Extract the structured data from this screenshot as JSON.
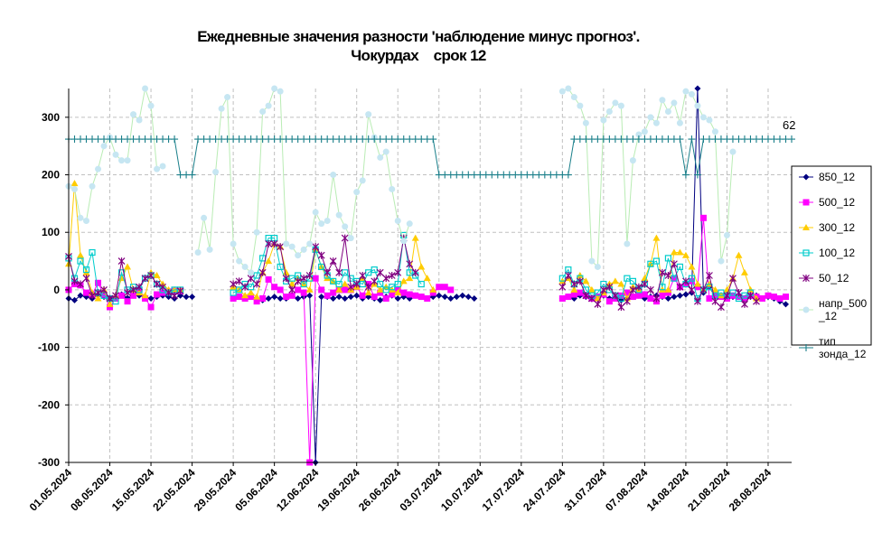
{
  "chart_data": {
    "type": "line",
    "title_line1": "Ежедневные значения разности 'наблюдение минус прогноз'.",
    "title_line2": "Чокурдах    срок 12",
    "ylim": [
      -300,
      350
    ],
    "yticks": [
      "300",
      "200",
      "100",
      "0",
      "-100",
      "-200",
      "-300"
    ],
    "ytick_values": [
      300,
      200,
      100,
      0,
      -100,
      -200,
      -300
    ],
    "x_start_day": "01.05.2024",
    "x_end_day": "01.09.2024",
    "xtick_labels": [
      "01.05.2024",
      "08.05.2024",
      "15.05.2024",
      "22.05.2024",
      "29.05.2024",
      "05.06.2024",
      "12.06.2024",
      "19.06.2024",
      "26.06.2024",
      "03.07.2024",
      "10.07.2024",
      "17.07.2024",
      "24.07.2024",
      "31.07.2024",
      "07.08.2024",
      "14.08.2024",
      "21.08.2024",
      "28.08.2024"
    ],
    "grid": true,
    "legend_position": "right",
    "annotation": "62",
    "series": [
      {
        "name": "850_12",
        "color": "#000080",
        "marker": "diamond",
        "legend_lines": [
          "850_12"
        ],
        "segments": [
          {
            "start": "01.05.2024",
            "values": [
              -15,
              -18,
              -10,
              -12,
              -15,
              -10,
              -12,
              -15,
              -12,
              -8,
              -14,
              -10,
              -10,
              -12,
              -15,
              -12,
              -10,
              -12,
              -15,
              -10,
              -12,
              -12
            ]
          },
          {
            "start": "29.05.2024",
            "values": [
              -15,
              -12,
              -15,
              -12,
              -15,
              -18,
              -15,
              -12,
              -15,
              -15,
              -10,
              -15,
              -12,
              -10,
              -300,
              -12,
              -12,
              -15,
              -12,
              -15,
              -12,
              -10,
              -15,
              -12,
              -15,
              -18,
              -12,
              -10,
              -15,
              -12,
              -15,
              -10,
              -12,
              -15,
              -12,
              -10,
              -12,
              -15,
              -12,
              -10,
              -12,
              -15
            ]
          },
          {
            "start": "24.07.2024",
            "values": [
              -15,
              -12,
              -15,
              -10,
              -12,
              -15,
              -12,
              -10,
              -15,
              -12,
              -18,
              -15,
              -12,
              -10,
              -15,
              -12,
              -10,
              -12,
              -15,
              -12,
              -10,
              -8,
              -5,
              350,
              -5,
              5,
              -12,
              -10,
              -15,
              -12,
              -10,
              -15,
              -12,
              -10,
              -15,
              -12,
              -15,
              -20,
              -25
            ]
          }
        ]
      },
      {
        "name": "500_12",
        "color": "#ff00ff",
        "marker": "square",
        "legend_lines": [
          "500_12"
        ],
        "segments": [
          {
            "start": "01.05.2024",
            "values": [
              0,
              10,
              8,
              -5,
              -8,
              12,
              -8,
              -30,
              -15,
              -10,
              -20,
              -10,
              0,
              -15,
              -30,
              -8,
              -5,
              -3,
              -2,
              -2
            ]
          },
          {
            "start": "29.05.2024",
            "values": [
              -15,
              -12,
              -15,
              -12,
              -20,
              -15,
              18,
              5,
              0,
              -12,
              -10,
              0,
              -5,
              -300,
              20,
              0,
              -10,
              -5,
              0,
              0,
              0,
              5,
              -10,
              10,
              -12,
              -5,
              -15,
              -8,
              0,
              -5,
              -8,
              -10,
              -12,
              -15,
              -5,
              5,
              5,
              0
            ]
          },
          {
            "start": "24.07.2024",
            "values": [
              -15,
              -12,
              -8,
              -5,
              -10,
              -15,
              -12,
              -8,
              -20,
              -15,
              -10,
              -5,
              -12,
              -10,
              -8,
              -15,
              -20,
              -10,
              -5,
              20,
              5,
              10,
              15,
              5,
              125,
              -15,
              -10,
              -12,
              -15,
              -10,
              -12,
              -15,
              -10,
              -12,
              -15,
              -10,
              -12,
              -15,
              -12
            ]
          }
        ]
      },
      {
        "name": "300_12",
        "color": "#ffcc00",
        "marker": "triangle",
        "legend_lines": [
          "300_12"
        ],
        "segments": [
          {
            "start": "01.05.2024",
            "values": [
              45,
              185,
              60,
              30,
              -5,
              -15,
              0,
              -25,
              -10,
              20,
              40,
              0,
              -5,
              -10,
              30,
              25,
              10,
              0,
              0,
              0
            ]
          },
          {
            "start": "29.05.2024",
            "values": [
              5,
              0,
              -10,
              -5,
              -12,
              30,
              50,
              80,
              75,
              30,
              10,
              20,
              10,
              0,
              70,
              40,
              20,
              15,
              0,
              10,
              0,
              5,
              20,
              -5,
              10,
              0,
              5,
              0,
              -5,
              15,
              20,
              90,
              40,
              20,
              0
            ]
          },
          {
            "start": "24.07.2024",
            "values": [
              15,
              20,
              0,
              25,
              15,
              0,
              -15,
              -5,
              10,
              15,
              10,
              -15,
              5,
              0,
              20,
              45,
              90,
              0,
              0,
              65,
              65,
              60,
              40,
              10,
              0,
              10,
              0,
              -10,
              0,
              20,
              60,
              30,
              0,
              -15
            ]
          }
        ]
      },
      {
        "name": "100_12",
        "color": "#00cccc",
        "marker": "square-open",
        "legend_lines": [
          "100_12"
        ],
        "segments": [
          {
            "start": "01.05.2024",
            "values": [
              55,
              20,
              50,
              35,
              65,
              -5,
              -10,
              -15,
              -20,
              30,
              0,
              5,
              0,
              20,
              25,
              10,
              0,
              -5,
              0,
              0
            ]
          },
          {
            "start": "29.05.2024",
            "values": [
              -5,
              0,
              10,
              5,
              25,
              55,
              90,
              90,
              40,
              15,
              20,
              25,
              10,
              20,
              70,
              40,
              25,
              15,
              10,
              30,
              20,
              15,
              10,
              30,
              35,
              10,
              0,
              5,
              10,
              95,
              30,
              25,
              10
            ]
          },
          {
            "start": "24.07.2024",
            "values": [
              20,
              35,
              10,
              20,
              0,
              -10,
              -5,
              10,
              0,
              -10,
              -15,
              20,
              15,
              0,
              10,
              45,
              50,
              5,
              55,
              20,
              40,
              10,
              20,
              -15,
              0,
              5,
              -10,
              -5,
              -10,
              -5,
              -15,
              -10,
              -5
            ]
          }
        ]
      },
      {
        "name": "50_12",
        "color": "#800080",
        "marker": "star",
        "legend_lines": [
          "50_12"
        ],
        "segments": [
          {
            "start": "01.05.2024",
            "values": [
              58,
              15,
              10,
              20,
              -10,
              -5,
              0,
              -15,
              -10,
              50,
              -5,
              0,
              5,
              20,
              25,
              10,
              5,
              -5,
              -10,
              -2
            ]
          },
          {
            "start": "29.05.2024",
            "values": [
              10,
              15,
              5,
              20,
              10,
              30,
              80,
              80,
              75,
              20,
              0,
              15,
              20,
              25,
              75,
              60,
              30,
              50,
              30,
              90,
              5,
              10,
              25,
              5,
              15,
              30,
              20,
              25,
              30,
              90,
              45,
              30
            ]
          },
          {
            "start": "24.07.2024",
            "values": [
              5,
              25,
              10,
              15,
              -10,
              -15,
              -25,
              0,
              5,
              -10,
              -30,
              -20,
              0,
              5,
              10,
              0,
              -15,
              30,
              25,
              45,
              5,
              15,
              0,
              -20,
              0,
              25,
              -20,
              -30,
              -10,
              20,
              -5,
              -25,
              -10,
              -20
            ]
          }
        ]
      },
      {
        "name": "напр_500_12",
        "color": "#c6e6f2",
        "marker": "dot",
        "legend_lines": [
          "напр_500",
          "_12"
        ],
        "segments": [
          {
            "start": "01.05.2024",
            "values": [
              180,
              175,
              125,
              120,
              180,
              210,
              250,
              265,
              235,
              225,
              225,
              305,
              295,
              350,
              320,
              210,
              215
            ]
          },
          {
            "start": "23.05.2024",
            "values": [
              65,
              125,
              70,
              205,
              315,
              335,
              80,
              50,
              40,
              30,
              100,
              310,
              320,
              350,
              345,
              80,
              75,
              60,
              70,
              80,
              135,
              115,
              120,
              200,
              130,
              110,
              90,
              170,
              190,
              305,
              265,
              230,
              240,
              175,
              120,
              85,
              115
            ]
          },
          {
            "start": "24.07.2024",
            "values": [
              345,
              350,
              335,
              320,
              290,
              50,
              40,
              295,
              310,
              325,
              320,
              80,
              225,
              270,
              275,
              300,
              290,
              330,
              310,
              325,
              290,
              345,
              340,
              320,
              300,
              295,
              275,
              50,
              95,
              240
            ]
          }
        ]
      },
      {
        "name": "тип зонда_12",
        "color": "#1a7f8a",
        "marker": "plus",
        "legend_lines": [
          "тип",
          "зонда_12"
        ],
        "segments": [
          {
            "start": "01.05.2024",
            "values": [
              262,
              262,
              262,
              262,
              262,
              262,
              262,
              262,
              262,
              262,
              262,
              262,
              262,
              262,
              262,
              262,
              262,
              262,
              262,
              200,
              200,
              200,
              262,
              262,
              262,
              262,
              262,
              262,
              262,
              262,
              262,
              262,
              262,
              262,
              262,
              262,
              262,
              262,
              262,
              262,
              262,
              262,
              262,
              262,
              262,
              262,
              262,
              262,
              262,
              262,
              262,
              262,
              262,
              262,
              262,
              262,
              262,
              262,
              262,
              262,
              262,
              262,
              262,
              200,
              200,
              200,
              200,
              200,
              200,
              200,
              200,
              200,
              200,
              200,
              200,
              200,
              200,
              200,
              200,
              200,
              200,
              200,
              200,
              200,
              200,
              200,
              262,
              262,
              262,
              262,
              262,
              262,
              262,
              262,
              262,
              262,
              262,
              262,
              262,
              262,
              262,
              262,
              262,
              262,
              262,
              200,
              262,
              200,
              262,
              262,
              262,
              262,
              262,
              262,
              262,
              262,
              262,
              262,
              262,
              262,
              262,
              262,
              262,
              262
            ]
          }
        ]
      }
    ]
  }
}
